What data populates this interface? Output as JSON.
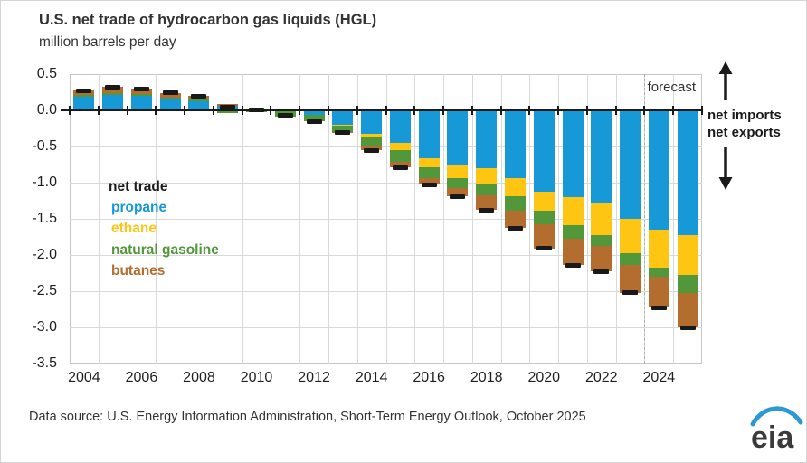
{
  "header": {
    "title": "U.S. net trade of hydrocarbon gas liquids (HGL)",
    "subtitle": "million barrels per day"
  },
  "legend": {
    "title": "net trade",
    "title_color": "#1a1a1a",
    "items": [
      {
        "label": "propane",
        "color": "#1799d8"
      },
      {
        "label": "ethane",
        "color": "#ffc513"
      },
      {
        "label": "natural gasoline",
        "color": "#53973b"
      },
      {
        "label": "butanes",
        "color": "#b26d2f"
      }
    ]
  },
  "annotations": {
    "forecast_label": "forecast",
    "net_imports_label": "net imports",
    "net_exports_label": "net exports"
  },
  "footer": {
    "source_text": "Data source: U.S. Energy Information Administration, Short-Term Energy Outlook, October 2025",
    "logo_text": "eia"
  },
  "chart_data": {
    "type": "bar",
    "stacked": true,
    "title": "U.S. net trade of hydrocarbon gas liquids (HGL)",
    "ylabel": "million barrels per day",
    "categories": [
      2004,
      2005,
      2006,
      2007,
      2008,
      2009,
      2010,
      2011,
      2012,
      2013,
      2014,
      2015,
      2016,
      2017,
      2018,
      2019,
      2020,
      2021,
      2022,
      2023,
      2024,
      2025
    ],
    "series": [
      {
        "name": "propane",
        "color": "#1799d8",
        "values": [
          0.19,
          0.21,
          0.2,
          0.16,
          0.13,
          0.06,
          0.02,
          -0.01,
          -0.06,
          -0.2,
          -0.32,
          -0.45,
          -0.66,
          -0.76,
          -0.8,
          -0.94,
          -1.13,
          -1.2,
          -1.28,
          -1.5,
          -1.65,
          -1.72
        ]
      },
      {
        "name": "ethane",
        "color": "#ffc513",
        "values": [
          0,
          0,
          0,
          0,
          0,
          0,
          0,
          0,
          0,
          -0.01,
          -0.06,
          -0.1,
          -0.13,
          -0.18,
          -0.23,
          -0.25,
          -0.26,
          -0.39,
          -0.44,
          -0.48,
          -0.52,
          -0.56
        ]
      },
      {
        "name": "natural gasoline",
        "color": "#53973b",
        "values": [
          0.02,
          0.03,
          0.03,
          0.02,
          0.02,
          -0.04,
          -0.02,
          -0.08,
          -0.09,
          -0.09,
          -0.12,
          -0.16,
          -0.15,
          -0.14,
          -0.15,
          -0.2,
          -0.18,
          -0.19,
          -0.15,
          -0.16,
          -0.13,
          -0.25
        ]
      },
      {
        "name": "butanes",
        "color": "#b26d2f",
        "values": [
          0.06,
          0.08,
          0.07,
          0.06,
          0.05,
          0.03,
          0.01,
          0.02,
          0,
          -0.01,
          -0.05,
          -0.08,
          -0.09,
          -0.11,
          -0.2,
          -0.24,
          -0.34,
          -0.36,
          -0.36,
          -0.38,
          -0.43,
          -0.47
        ]
      }
    ],
    "net_trade": [
      0.27,
      0.32,
      0.3,
      0.24,
      0.2,
      0.05,
      0.01,
      -0.07,
      -0.15,
      -0.31,
      -0.55,
      -0.79,
      -1.03,
      -1.19,
      -1.38,
      -1.63,
      -1.91,
      -2.14,
      -2.23,
      -2.52,
      -2.73,
      -3.0
    ],
    "net_trade_color": "#191919",
    "y_tick_labels": [
      "0.5",
      "0.0",
      "-0.5",
      "-1.0",
      "-1.5",
      "-2.0",
      "-2.5",
      "-3.0",
      "-3.5"
    ],
    "x_tick_labels": [
      "2004",
      "2006",
      "2008",
      "2010",
      "2012",
      "2014",
      "2016",
      "2018",
      "2020",
      "2022",
      "2024"
    ],
    "ylim": [
      -3.5,
      0.5
    ],
    "grid": true,
    "legend_position": "inside-left",
    "forecast_start": 2024
  }
}
